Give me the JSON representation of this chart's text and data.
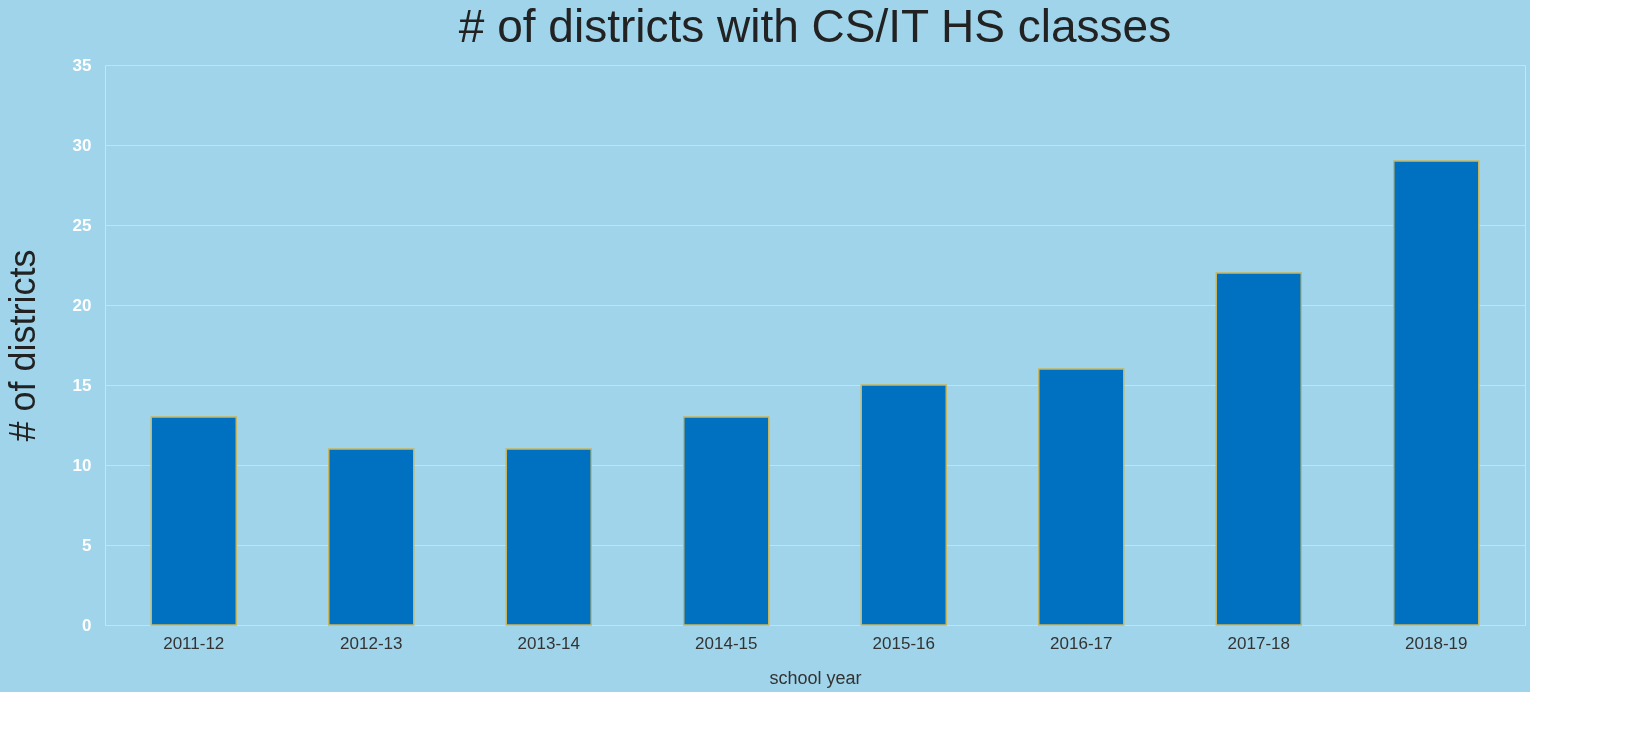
{
  "chart_data": {
    "type": "bar",
    "title": "# of districts with CS/IT HS classes",
    "xlabel": "school year",
    "ylabel": "# of districts",
    "categories": [
      "2011-12",
      "2012-13",
      "2013-14",
      "2014-15",
      "2015-16",
      "2016-17",
      "2017-18",
      "2018-19"
    ],
    "values": [
      13,
      11,
      11,
      13,
      15,
      16,
      22,
      29
    ],
    "color": "#0070c0",
    "ylim": [
      0,
      35
    ],
    "yticks": [
      0,
      5,
      10,
      15,
      20,
      25,
      30,
      35
    ],
    "grid": "y"
  }
}
